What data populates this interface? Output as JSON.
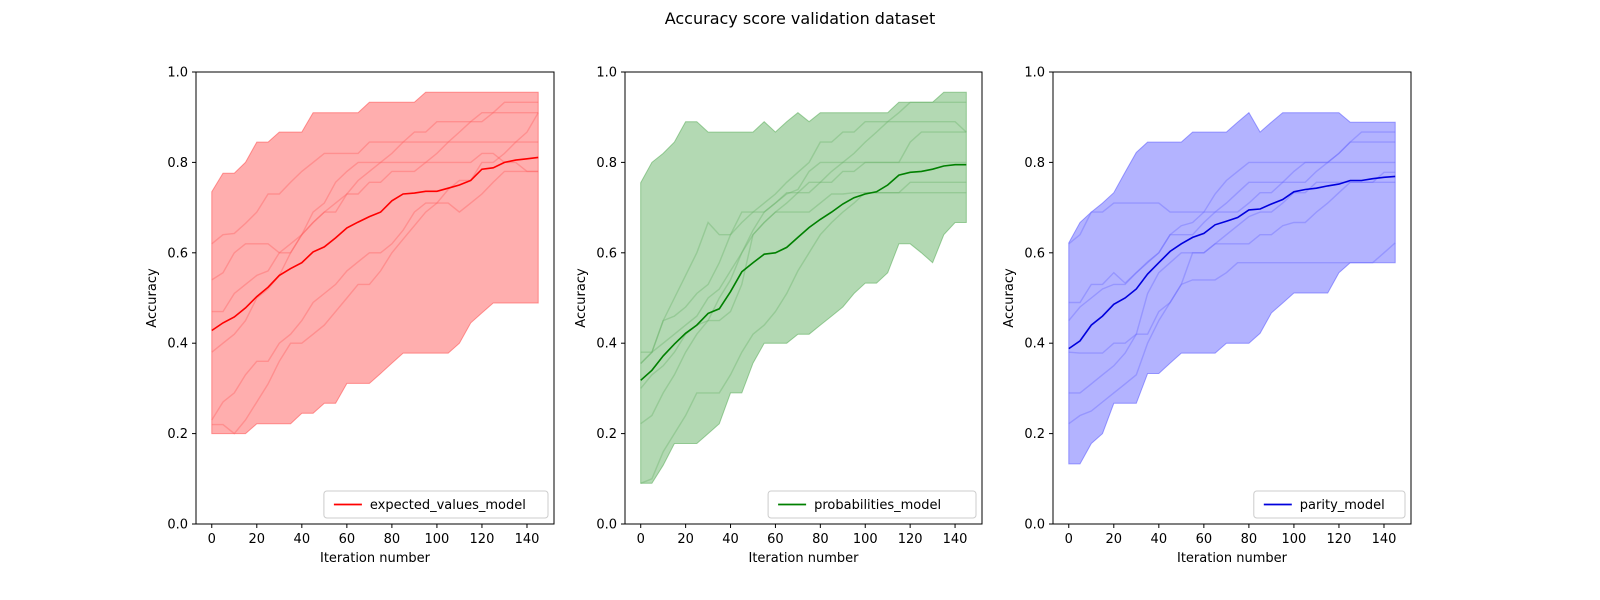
{
  "figure": {
    "title": "Accuracy score validation dataset"
  },
  "chart_data": [
    {
      "type": "line",
      "title": "",
      "xlabel": "Iteration number",
      "ylabel": "Accuracy",
      "xlim": [
        -7,
        152
      ],
      "ylim": [
        0,
        1
      ],
      "xticks": [
        0,
        20,
        40,
        60,
        80,
        100,
        120,
        140
      ],
      "yticks": [
        0.0,
        0.2,
        0.4,
        0.6,
        0.8,
        1.0
      ],
      "legend_placement": "lower-right",
      "color": "#ff0000",
      "band_color": "#ff5555",
      "x": [
        0,
        5,
        10,
        15,
        20,
        25,
        30,
        35,
        40,
        45,
        50,
        55,
        60,
        65,
        70,
        75,
        80,
        85,
        90,
        95,
        100,
        105,
        110,
        115,
        120,
        125,
        130,
        135,
        140,
        145
      ],
      "series": [
        {
          "name": "expected_values_model",
          "values": [
            0.428,
            0.445,
            0.458,
            0.478,
            0.503,
            0.524,
            0.55,
            0.565,
            0.578,
            0.602,
            0.613,
            0.633,
            0.655,
            0.668,
            0.68,
            0.69,
            0.715,
            0.73,
            0.732,
            0.736,
            0.736,
            0.743,
            0.75,
            0.76,
            0.785,
            0.788,
            0.8,
            0.805,
            0.808,
            0.811
          ]
        }
      ],
      "band_upper": [
        0.735,
        0.776,
        0.776,
        0.8,
        0.845,
        0.845,
        0.867,
        0.867,
        0.867,
        0.91,
        0.91,
        0.91,
        0.91,
        0.91,
        0.933,
        0.933,
        0.933,
        0.933,
        0.933,
        0.955,
        0.955,
        0.955,
        0.955,
        0.955,
        0.955,
        0.955,
        0.955,
        0.955,
        0.955,
        0.955
      ],
      "band_lower": [
        0.2,
        0.2,
        0.2,
        0.2,
        0.222,
        0.222,
        0.222,
        0.222,
        0.245,
        0.245,
        0.267,
        0.267,
        0.311,
        0.311,
        0.311,
        0.333,
        0.356,
        0.378,
        0.378,
        0.378,
        0.378,
        0.378,
        0.4,
        0.445,
        0.467,
        0.489,
        0.489,
        0.489,
        0.489,
        0.489
      ],
      "runs": [
        [
          0.62,
          0.64,
          0.643,
          0.665,
          0.69,
          0.73,
          0.73,
          0.756,
          0.78,
          0.8,
          0.82,
          0.82,
          0.82,
          0.82,
          0.845,
          0.845,
          0.845,
          0.845,
          0.845,
          0.845,
          0.845,
          0.845,
          0.845,
          0.845,
          0.845,
          0.845,
          0.845,
          0.845,
          0.845,
          0.845
        ],
        [
          0.54,
          0.556,
          0.6,
          0.62,
          0.62,
          0.62,
          0.6,
          0.6,
          0.64,
          0.69,
          0.71,
          0.756,
          0.78,
          0.8,
          0.8,
          0.8,
          0.8,
          0.8,
          0.8,
          0.8,
          0.8,
          0.8,
          0.8,
          0.8,
          0.82,
          0.82,
          0.8,
          0.8,
          0.78,
          0.78
        ],
        [
          0.47,
          0.47,
          0.51,
          0.53,
          0.55,
          0.56,
          0.6,
          0.62,
          0.64,
          0.667,
          0.69,
          0.71,
          0.73,
          0.76,
          0.78,
          0.8,
          0.82,
          0.845,
          0.867,
          0.867,
          0.89,
          0.89,
          0.89,
          0.89,
          0.89,
          0.91,
          0.933,
          0.933,
          0.933,
          0.933
        ],
        [
          0.38,
          0.4,
          0.42,
          0.45,
          0.5,
          0.52,
          0.55,
          0.6,
          0.64,
          0.667,
          0.69,
          0.69,
          0.73,
          0.73,
          0.756,
          0.756,
          0.78,
          0.78,
          0.78,
          0.8,
          0.82,
          0.845,
          0.867,
          0.89,
          0.91,
          0.91,
          0.91,
          0.91,
          0.91,
          0.91
        ],
        [
          0.23,
          0.27,
          0.29,
          0.33,
          0.36,
          0.36,
          0.4,
          0.42,
          0.45,
          0.49,
          0.51,
          0.53,
          0.56,
          0.58,
          0.6,
          0.6,
          0.62,
          0.65,
          0.69,
          0.71,
          0.71,
          0.74,
          0.76,
          0.76,
          0.8,
          0.8,
          0.82,
          0.845,
          0.867,
          0.91
        ],
        [
          0.22,
          0.22,
          0.2,
          0.23,
          0.27,
          0.31,
          0.36,
          0.4,
          0.4,
          0.42,
          0.44,
          0.47,
          0.5,
          0.53,
          0.53,
          0.56,
          0.6,
          0.63,
          0.66,
          0.69,
          0.71,
          0.71,
          0.69,
          0.71,
          0.73,
          0.756,
          0.78,
          0.78,
          0.78,
          0.78
        ]
      ]
    },
    {
      "type": "line",
      "title": "",
      "xlabel": "Iteration number",
      "ylabel": "Accuracy",
      "xlim": [
        -7,
        152
      ],
      "ylim": [
        0,
        1
      ],
      "xticks": [
        0,
        20,
        40,
        60,
        80,
        100,
        120,
        140
      ],
      "yticks": [
        0.0,
        0.2,
        0.4,
        0.6,
        0.8,
        1.0
      ],
      "legend_placement": "lower-right",
      "color": "#008000",
      "band_color": "#60b060",
      "x": [
        0,
        5,
        10,
        15,
        20,
        25,
        30,
        35,
        40,
        45,
        50,
        55,
        60,
        65,
        70,
        75,
        80,
        85,
        90,
        95,
        100,
        105,
        110,
        115,
        120,
        125,
        130,
        135,
        140,
        145
      ],
      "series": [
        {
          "name": "probabilities_model",
          "values": [
            0.318,
            0.34,
            0.372,
            0.398,
            0.422,
            0.44,
            0.466,
            0.476,
            0.514,
            0.558,
            0.578,
            0.597,
            0.6,
            0.612,
            0.634,
            0.656,
            0.674,
            0.69,
            0.708,
            0.722,
            0.73,
            0.735,
            0.75,
            0.772,
            0.778,
            0.78,
            0.785,
            0.792,
            0.795,
            0.795
          ]
        }
      ],
      "band_upper": [
        0.755,
        0.8,
        0.82,
        0.845,
        0.89,
        0.89,
        0.867,
        0.867,
        0.867,
        0.867,
        0.867,
        0.89,
        0.867,
        0.89,
        0.91,
        0.89,
        0.91,
        0.91,
        0.91,
        0.91,
        0.91,
        0.91,
        0.91,
        0.933,
        0.933,
        0.933,
        0.933,
        0.955,
        0.955,
        0.955
      ],
      "band_lower": [
        0.09,
        0.09,
        0.13,
        0.178,
        0.178,
        0.178,
        0.2,
        0.222,
        0.29,
        0.29,
        0.356,
        0.4,
        0.4,
        0.4,
        0.42,
        0.42,
        0.44,
        0.46,
        0.48,
        0.51,
        0.533,
        0.533,
        0.556,
        0.62,
        0.62,
        0.6,
        0.578,
        0.64,
        0.667,
        0.667
      ],
      "runs": [
        [
          0.38,
          0.38,
          0.45,
          0.46,
          0.48,
          0.51,
          0.53,
          0.578,
          0.64,
          0.69,
          0.69,
          0.69,
          0.71,
          0.73,
          0.74,
          0.78,
          0.8,
          0.8,
          0.8,
          0.8,
          0.8,
          0.8,
          0.8,
          0.8,
          0.845,
          0.867,
          0.867,
          0.867,
          0.867,
          0.867
        ],
        [
          0.355,
          0.38,
          0.45,
          0.5,
          0.55,
          0.6,
          0.667,
          0.64,
          0.64,
          0.667,
          0.69,
          0.71,
          0.73,
          0.756,
          0.778,
          0.8,
          0.845,
          0.845,
          0.867,
          0.867,
          0.89,
          0.89,
          0.89,
          0.89,
          0.89,
          0.89,
          0.89,
          0.89,
          0.89,
          0.867
        ],
        [
          0.222,
          0.24,
          0.29,
          0.33,
          0.38,
          0.42,
          0.45,
          0.45,
          0.47,
          0.53,
          0.64,
          0.667,
          0.69,
          0.69,
          0.69,
          0.69,
          0.71,
          0.73,
          0.73,
          0.733,
          0.733,
          0.733,
          0.733,
          0.733,
          0.733,
          0.733,
          0.733,
          0.733,
          0.733,
          0.733
        ],
        [
          0.09,
          0.1,
          0.16,
          0.2,
          0.24,
          0.29,
          0.29,
          0.29,
          0.33,
          0.38,
          0.42,
          0.44,
          0.47,
          0.51,
          0.56,
          0.6,
          0.64,
          0.667,
          0.69,
          0.71,
          0.733,
          0.733,
          0.733,
          0.733,
          0.756,
          0.756,
          0.756,
          0.756,
          0.756,
          0.756
        ],
        [
          0.355,
          0.38,
          0.4,
          0.42,
          0.44,
          0.46,
          0.5,
          0.52,
          0.56,
          0.6,
          0.64,
          0.667,
          0.69,
          0.71,
          0.733,
          0.756,
          0.756,
          0.756,
          0.78,
          0.78,
          0.8,
          0.8,
          0.8,
          0.8,
          0.8,
          0.8,
          0.8,
          0.8,
          0.8,
          0.8
        ],
        [
          0.3,
          0.33,
          0.35,
          0.38,
          0.42,
          0.44,
          0.45,
          0.5,
          0.54,
          0.6,
          0.65,
          0.69,
          0.71,
          0.733,
          0.733,
          0.733,
          0.756,
          0.78,
          0.8,
          0.82,
          0.845,
          0.867,
          0.89,
          0.91,
          0.933,
          0.933,
          0.933,
          0.933,
          0.933,
          0.933
        ]
      ]
    },
    {
      "type": "line",
      "title": "",
      "xlabel": "Iteration number",
      "ylabel": "Accuracy",
      "xlim": [
        -7,
        152
      ],
      "ylim": [
        0,
        1
      ],
      "xticks": [
        0,
        20,
        40,
        60,
        80,
        100,
        120,
        140
      ],
      "yticks": [
        0.0,
        0.2,
        0.4,
        0.6,
        0.8,
        1.0
      ],
      "legend_placement": "lower-right",
      "color": "#0000dd",
      "band_color": "#6060ff",
      "x": [
        0,
        5,
        10,
        15,
        20,
        25,
        30,
        35,
        40,
        45,
        50,
        55,
        60,
        65,
        70,
        75,
        80,
        85,
        90,
        95,
        100,
        105,
        110,
        115,
        120,
        125,
        130,
        135,
        140,
        145
      ],
      "series": [
        {
          "name": "parity_model",
          "values": [
            0.388,
            0.405,
            0.44,
            0.46,
            0.486,
            0.5,
            0.52,
            0.553,
            0.578,
            0.603,
            0.62,
            0.634,
            0.643,
            0.662,
            0.67,
            0.678,
            0.695,
            0.697,
            0.708,
            0.718,
            0.735,
            0.74,
            0.743,
            0.748,
            0.752,
            0.76,
            0.76,
            0.764,
            0.767,
            0.769
          ]
        }
      ],
      "band_upper": [
        0.622,
        0.667,
        0.69,
        0.71,
        0.733,
        0.778,
        0.822,
        0.845,
        0.845,
        0.845,
        0.845,
        0.867,
        0.867,
        0.867,
        0.867,
        0.889,
        0.91,
        0.867,
        0.889,
        0.91,
        0.91,
        0.91,
        0.91,
        0.91,
        0.91,
        0.889,
        0.889,
        0.889,
        0.889,
        0.889
      ],
      "band_lower": [
        0.133,
        0.133,
        0.178,
        0.2,
        0.267,
        0.267,
        0.267,
        0.333,
        0.333,
        0.356,
        0.378,
        0.378,
        0.378,
        0.378,
        0.4,
        0.4,
        0.4,
        0.422,
        0.467,
        0.489,
        0.511,
        0.511,
        0.511,
        0.511,
        0.556,
        0.578,
        0.578,
        0.578,
        0.578,
        0.578
      ],
      "runs": [
        [
          0.62,
          0.64,
          0.69,
          0.69,
          0.71,
          0.71,
          0.71,
          0.71,
          0.71,
          0.69,
          0.69,
          0.69,
          0.69,
          0.69,
          0.71,
          0.733,
          0.756,
          0.756,
          0.756,
          0.756,
          0.78,
          0.8,
          0.8,
          0.8,
          0.82,
          0.845,
          0.845,
          0.845,
          0.845,
          0.845
        ],
        [
          0.49,
          0.49,
          0.53,
          0.53,
          0.556,
          0.533,
          0.556,
          0.578,
          0.6,
          0.64,
          0.66,
          0.667,
          0.69,
          0.73,
          0.76,
          0.78,
          0.8,
          0.8,
          0.8,
          0.8,
          0.8,
          0.8,
          0.8,
          0.8,
          0.8,
          0.8,
          0.8,
          0.8,
          0.8,
          0.8
        ],
        [
          0.45,
          0.48,
          0.5,
          0.52,
          0.53,
          0.53,
          0.556,
          0.58,
          0.6,
          0.64,
          0.64,
          0.64,
          0.667,
          0.69,
          0.69,
          0.69,
          0.71,
          0.733,
          0.733,
          0.756,
          0.756,
          0.756,
          0.78,
          0.8,
          0.82,
          0.845,
          0.867,
          0.867,
          0.867,
          0.867
        ],
        [
          0.38,
          0.378,
          0.378,
          0.378,
          0.4,
          0.4,
          0.42,
          0.42,
          0.47,
          0.49,
          0.53,
          0.6,
          0.6,
          0.62,
          0.64,
          0.66,
          0.68,
          0.69,
          0.69,
          0.71,
          0.733,
          0.733,
          0.756,
          0.756,
          0.756,
          0.756,
          0.756,
          0.756,
          0.756,
          0.756
        ],
        [
          0.29,
          0.29,
          0.31,
          0.33,
          0.35,
          0.378,
          0.42,
          0.51,
          0.556,
          0.578,
          0.6,
          0.6,
          0.6,
          0.62,
          0.62,
          0.62,
          0.62,
          0.64,
          0.64,
          0.66,
          0.667,
          0.667,
          0.69,
          0.71,
          0.733,
          0.756,
          0.756,
          0.756,
          0.778,
          0.778
        ],
        [
          0.222,
          0.24,
          0.25,
          0.27,
          0.29,
          0.31,
          0.33,
          0.4,
          0.45,
          0.49,
          0.53,
          0.54,
          0.54,
          0.54,
          0.556,
          0.578,
          0.578,
          0.578,
          0.578,
          0.578,
          0.578,
          0.578,
          0.578,
          0.578,
          0.578,
          0.578,
          0.578,
          0.578,
          0.6,
          0.622
        ]
      ]
    }
  ]
}
